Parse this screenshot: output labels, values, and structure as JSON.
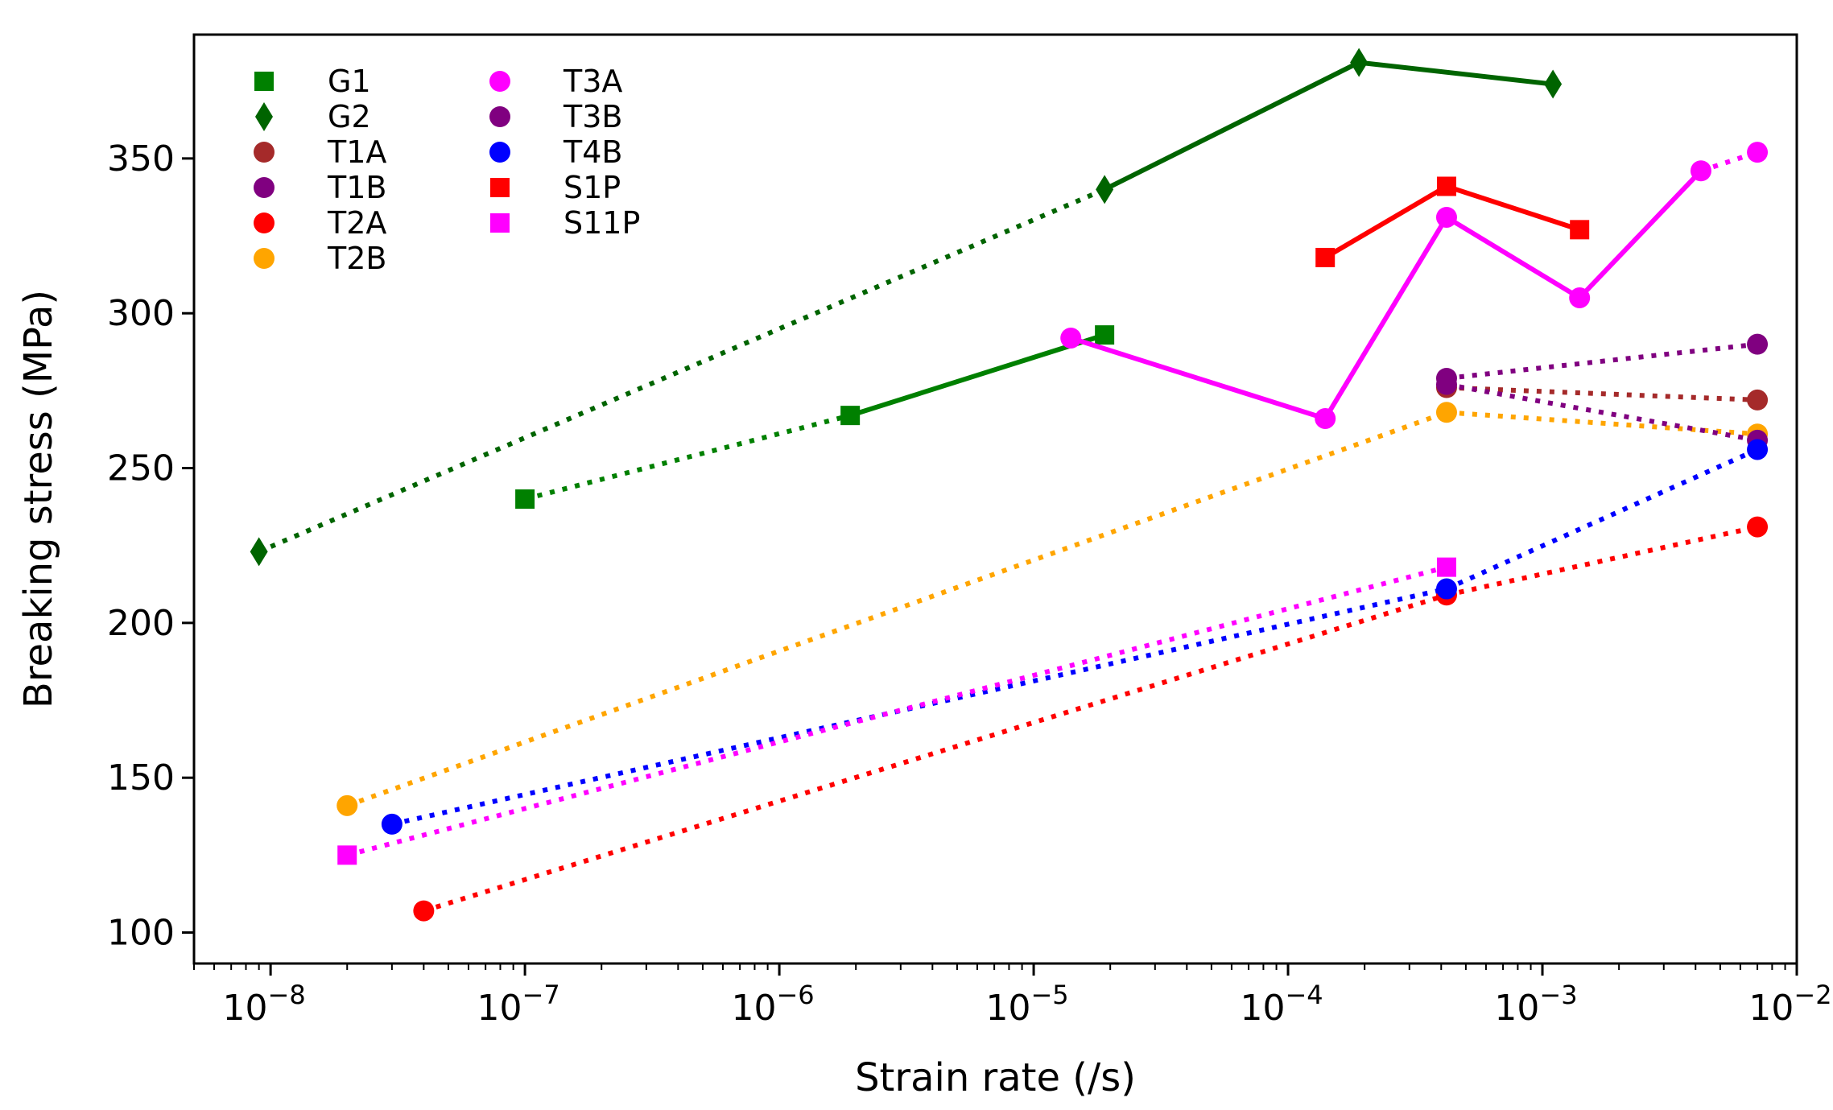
{
  "chart_data": {
    "type": "scatter",
    "title": "",
    "xlabel": "Strain rate (/s)",
    "ylabel": "Breaking stress (MPa)",
    "xscale": "log",
    "xlim": [
      5e-09,
      0.01
    ],
    "ylim": [
      90,
      390
    ],
    "x_ticks": [
      {
        "value": 1e-08,
        "base": "10",
        "exp": "−8"
      },
      {
        "value": 1e-07,
        "base": "10",
        "exp": "−7"
      },
      {
        "value": 1e-06,
        "base": "10",
        "exp": "−6"
      },
      {
        "value": 1e-05,
        "base": "10",
        "exp": "−5"
      },
      {
        "value": 0.0001,
        "base": "10",
        "exp": "−4"
      },
      {
        "value": 0.001,
        "base": "10",
        "exp": "−3"
      },
      {
        "value": 0.01,
        "base": "10",
        "exp": "−2"
      }
    ],
    "y_ticks": [
      {
        "value": 100,
        "label": "100"
      },
      {
        "value": 150,
        "label": "150"
      },
      {
        "value": 200,
        "label": "200"
      },
      {
        "value": 250,
        "label": "250"
      },
      {
        "value": 300,
        "label": "300"
      },
      {
        "value": 350,
        "label": "350"
      }
    ],
    "legend_position": "top-left",
    "series": [
      {
        "name": "G1",
        "color": "#008000",
        "marker": "square",
        "points": [
          [
            1e-07,
            240
          ],
          [
            1.9e-06,
            267
          ],
          [
            1.9e-05,
            293
          ]
        ],
        "segments": [
          [
            0,
            1,
            "dotted"
          ],
          [
            1,
            2,
            "solid"
          ]
        ]
      },
      {
        "name": "G2",
        "color": "#006400",
        "marker": "thin-diamond",
        "points": [
          [
            9e-09,
            223
          ],
          [
            1.9e-05,
            340
          ],
          [
            0.00019,
            381
          ],
          [
            0.0011,
            374
          ]
        ],
        "segments": [
          [
            0,
            1,
            "dotted"
          ],
          [
            1,
            2,
            "solid"
          ],
          [
            2,
            3,
            "solid"
          ]
        ]
      },
      {
        "name": "T1A",
        "color": "#a52a2a",
        "marker": "circle",
        "points": [
          [
            0.00042,
            276
          ],
          [
            0.007,
            272
          ]
        ],
        "segments": [
          [
            0,
            1,
            "dotted"
          ]
        ]
      },
      {
        "name": "T1B",
        "color": "#800080",
        "marker": "circle",
        "points": [
          [
            0.00042,
            279
          ],
          [
            0.007,
            290
          ]
        ],
        "segments": [
          [
            0,
            1,
            "dotted"
          ]
        ]
      },
      {
        "name": "T2A",
        "color": "#ff0000",
        "marker": "circle",
        "points": [
          [
            4e-08,
            107
          ],
          [
            0.00042,
            209
          ],
          [
            0.007,
            231
          ]
        ],
        "segments": [
          [
            0,
            1,
            "dotted"
          ],
          [
            1,
            2,
            "dotted"
          ]
        ]
      },
      {
        "name": "T2B",
        "color": "#ffa500",
        "marker": "circle",
        "points": [
          [
            2e-08,
            141
          ],
          [
            0.00042,
            268
          ],
          [
            0.007,
            261
          ]
        ],
        "segments": [
          [
            0,
            1,
            "dotted"
          ],
          [
            1,
            2,
            "dotted"
          ]
        ]
      },
      {
        "name": "T3A",
        "color": "#ff00ff",
        "marker": "circle",
        "points": [
          [
            1.4e-05,
            292
          ],
          [
            0.00014,
            266
          ],
          [
            0.00042,
            331
          ],
          [
            0.0014,
            305
          ],
          [
            0.0042,
            346
          ],
          [
            0.007,
            352
          ]
        ],
        "segments": [
          [
            0,
            1,
            "solid"
          ],
          [
            1,
            2,
            "solid"
          ],
          [
            2,
            3,
            "solid"
          ],
          [
            3,
            4,
            "solid"
          ],
          [
            4,
            5,
            "dotted"
          ]
        ]
      },
      {
        "name": "T3B",
        "color": "#800080",
        "marker": "circle",
        "points": [
          [
            0.00042,
            277
          ],
          [
            0.007,
            259
          ]
        ],
        "segments": [
          [
            0,
            1,
            "dotted"
          ]
        ]
      },
      {
        "name": "T4B",
        "color": "#0000ff",
        "marker": "circle",
        "points": [
          [
            3e-08,
            135
          ],
          [
            0.00042,
            211
          ],
          [
            0.007,
            256
          ]
        ],
        "segments": [
          [
            0,
            1,
            "dotted"
          ],
          [
            1,
            2,
            "dotted"
          ]
        ]
      },
      {
        "name": "S1P",
        "color": "#ff0000",
        "marker": "square",
        "points": [
          [
            0.00014,
            318
          ],
          [
            0.00042,
            341
          ],
          [
            0.0014,
            327
          ]
        ],
        "segments": [
          [
            0,
            1,
            "solid"
          ],
          [
            1,
            2,
            "solid"
          ]
        ]
      },
      {
        "name": "S11P",
        "color": "#ff00ff",
        "marker": "square",
        "points": [
          [
            2e-08,
            125
          ],
          [
            0.00042,
            218
          ]
        ],
        "segments": [
          [
            0,
            1,
            "dotted"
          ]
        ]
      }
    ]
  }
}
